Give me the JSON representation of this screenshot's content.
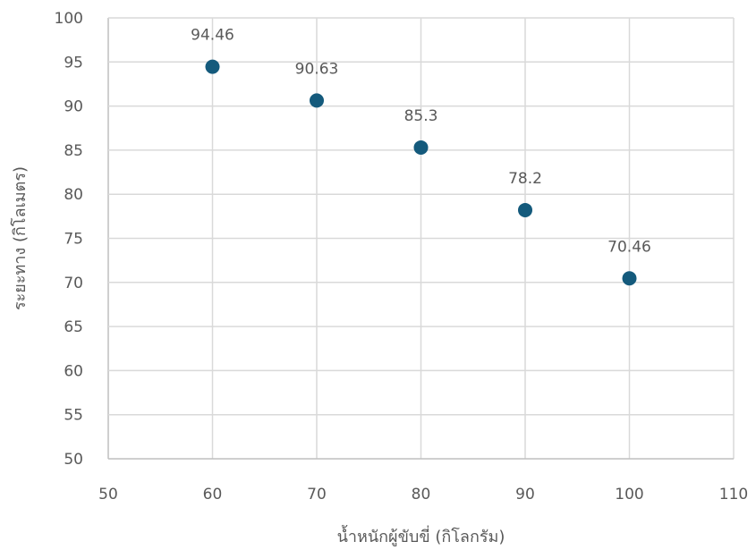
{
  "chart_data": {
    "type": "scatter",
    "title": "",
    "xlabel": "น้ำหนักผู้ขับขี่ (กิโลกรัม)",
    "ylabel": "ระยะทาง (กิโลเมตร)",
    "xlim": [
      50,
      110
    ],
    "ylim": [
      50,
      100
    ],
    "x_ticks": [
      50,
      60,
      70,
      80,
      90,
      100,
      110
    ],
    "y_ticks": [
      50,
      55,
      60,
      65,
      70,
      75,
      80,
      85,
      90,
      95,
      100
    ],
    "grid": true,
    "legend": "none",
    "marker_color": "#145a7c",
    "points": [
      {
        "x": 60,
        "y": 94.46,
        "label": "94.46"
      },
      {
        "x": 70,
        "y": 90.63,
        "label": "90.63"
      },
      {
        "x": 80,
        "y": 85.3,
        "label": "85.3"
      },
      {
        "x": 90,
        "y": 78.2,
        "label": "78.2"
      },
      {
        "x": 100,
        "y": 70.46,
        "label": "70.46"
      }
    ]
  }
}
